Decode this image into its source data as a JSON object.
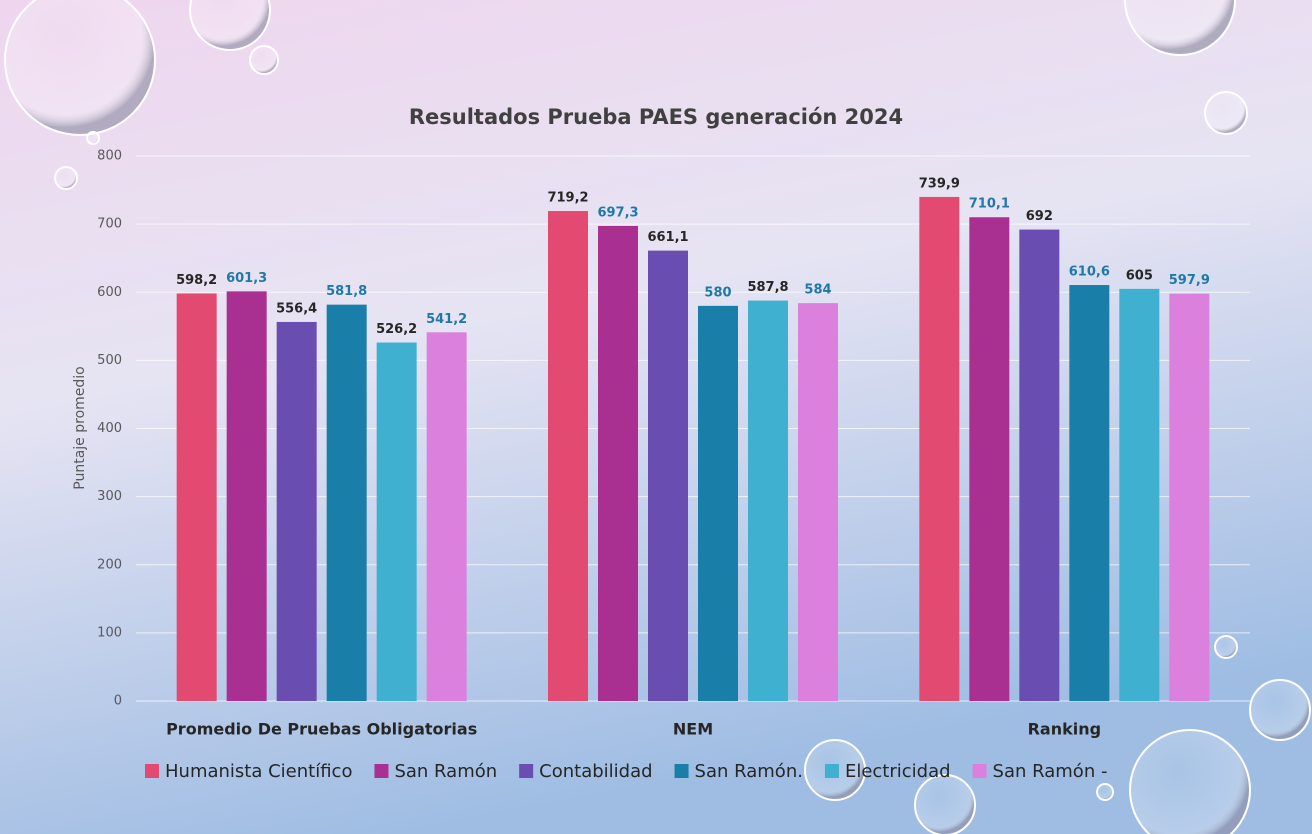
{
  "chart_data": {
    "type": "bar",
    "title": "Resultados Prueba PAES generación 2024",
    "y_label": "Puntaje promedio",
    "categories": [
      "Promedio De Pruebas Obligatorias",
      "NEM",
      "Ranking"
    ],
    "series": [
      {
        "name": "Humanista Científico",
        "color": "#e24a72",
        "values": [
          598.2,
          719.2,
          739.9
        ],
        "value_labels": [
          "598,2",
          "719,2",
          "739,9"
        ]
      },
      {
        "name": "San Ramón",
        "color": "#a93090",
        "values": [
          601.3,
          697.3,
          710.1
        ],
        "value_labels": [
          "601,3",
          "697,3",
          "710,1"
        ]
      },
      {
        "name": "Contabilidad",
        "color": "#6a4db0",
        "values": [
          556.4,
          661.1,
          692
        ],
        "value_labels": [
          "556,4",
          "661,1",
          "692"
        ]
      },
      {
        "name": "San Ramón.",
        "color": "#1a7fa8",
        "values": [
          581.8,
          580,
          610.6
        ],
        "value_labels": [
          "581,8",
          "580",
          "610,6"
        ]
      },
      {
        "name": "Electricidad",
        "color": "#40b0d0",
        "values": [
          526.2,
          587.8,
          605
        ],
        "value_labels": [
          "526,2",
          "587,8",
          "605"
        ]
      },
      {
        "name": "San Ramón -",
        "color": "#db80dd",
        "values": [
          541.2,
          584,
          597.9
        ],
        "value_labels": [
          "541,2",
          "584",
          "597,9"
        ]
      }
    ],
    "ylim": [
      0,
      800
    ],
    "yticks": [
      0,
      100,
      200,
      300,
      400,
      500,
      600,
      700,
      800
    ],
    "grid": true,
    "legend": "bottom"
  }
}
